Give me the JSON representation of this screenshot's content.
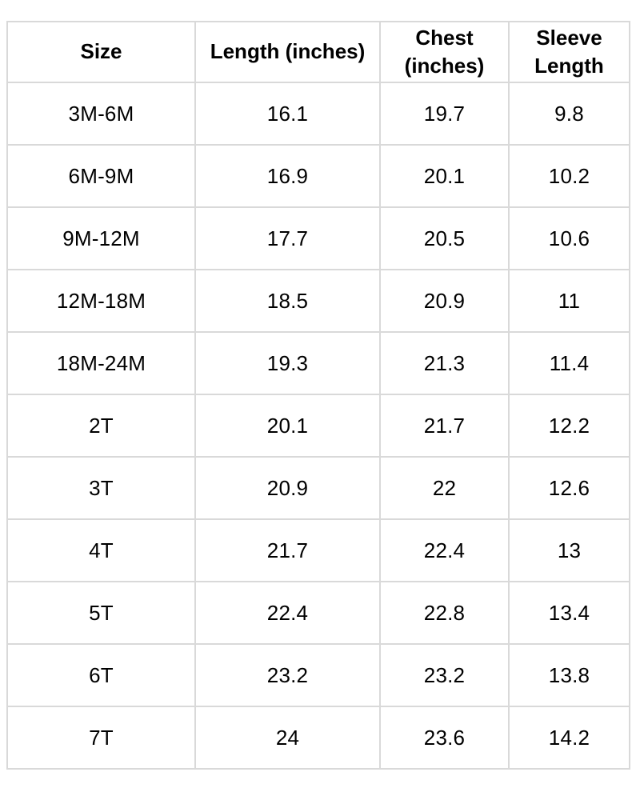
{
  "table": {
    "columns": [
      "Size",
      "Length (inches)",
      "Chest (inches)",
      "Sleeve Length"
    ],
    "rows": [
      [
        "3M-6M",
        "16.1",
        "19.7",
        "9.8"
      ],
      [
        "6M-9M",
        "16.9",
        "20.1",
        "10.2"
      ],
      [
        "9M-12M",
        "17.7",
        "20.5",
        "10.6"
      ],
      [
        "12M-18M",
        "18.5",
        "20.9",
        "11"
      ],
      [
        "18M-24M",
        "19.3",
        "21.3",
        "11.4"
      ],
      [
        "2T",
        "20.1",
        "21.7",
        "12.2"
      ],
      [
        "3T",
        "20.9",
        "22",
        "12.6"
      ],
      [
        "4T",
        "21.7",
        "22.4",
        "13"
      ],
      [
        "5T",
        "22.4",
        "22.8",
        "13.4"
      ],
      [
        "6T",
        "23.2",
        "23.2",
        "13.8"
      ],
      [
        "7T",
        "24",
        "23.6",
        "14.2"
      ]
    ],
    "colors": {
      "border": "#d9d9d9",
      "text": "#000000",
      "background": "#ffffff"
    }
  },
  "chart_data": {
    "type": "table",
    "title": "",
    "categories": [
      "3M-6M",
      "6M-9M",
      "9M-12M",
      "12M-18M",
      "18M-24M",
      "2T",
      "3T",
      "4T",
      "5T",
      "6T",
      "7T"
    ],
    "series": [
      {
        "name": "Length (inches)",
        "values": [
          16.1,
          16.9,
          17.7,
          18.5,
          19.3,
          20.1,
          20.9,
          21.7,
          22.4,
          23.2,
          24
        ]
      },
      {
        "name": "Chest (inches)",
        "values": [
          19.7,
          20.1,
          20.5,
          20.9,
          21.3,
          21.7,
          22,
          22.4,
          22.8,
          23.2,
          23.6
        ]
      },
      {
        "name": "Sleeve Length",
        "values": [
          9.8,
          10.2,
          10.6,
          11,
          11.4,
          12.2,
          12.6,
          13,
          13.4,
          13.8,
          14.2
        ]
      }
    ],
    "layout_hints": {
      "grid": "on",
      "header_bold": true,
      "cell_alignment": "center"
    }
  }
}
